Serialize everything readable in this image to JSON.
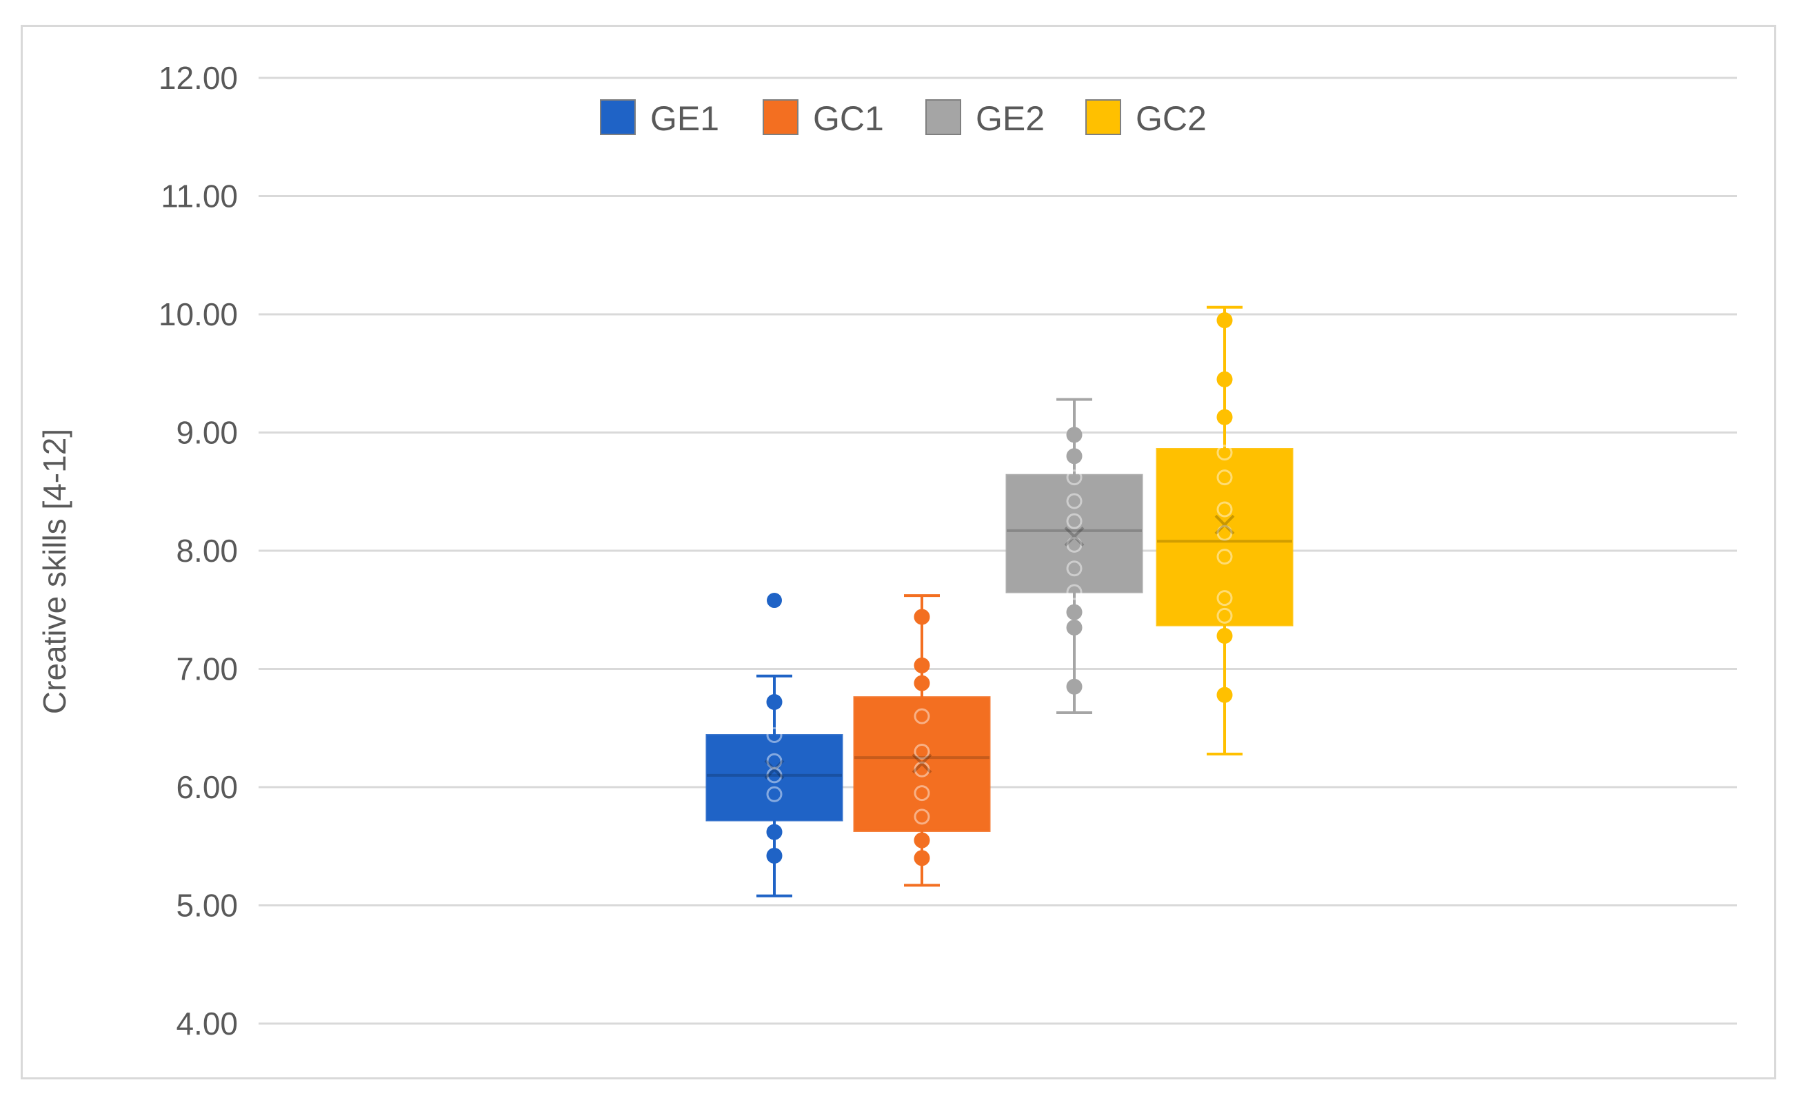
{
  "chart_data": {
    "type": "boxplot",
    "ylabel": "Creative skills [4-12]",
    "ylim": [
      4,
      12
    ],
    "yticks": [
      "4.00",
      "5.00",
      "6.00",
      "7.00",
      "8.00",
      "9.00",
      "10.00",
      "11.00",
      "12.00"
    ],
    "grid": true,
    "legend_position": "top",
    "series": [
      {
        "name": "GE1",
        "color": "#1f63c6",
        "min": 5.08,
        "q1": 5.72,
        "median": 6.1,
        "q3": 6.44,
        "max": 6.94,
        "mean": 6.15,
        "outliers": [
          7.58
        ],
        "points": [
          6.72,
          6.44,
          6.22,
          6.1,
          5.94,
          5.62,
          5.42
        ]
      },
      {
        "name": "GC1",
        "color": "#f36f21",
        "min": 5.17,
        "q1": 5.63,
        "median": 6.25,
        "q3": 6.76,
        "max": 7.62,
        "mean": 6.2,
        "outliers": [],
        "points": [
          7.44,
          7.03,
          6.88,
          6.6,
          6.3,
          6.15,
          5.95,
          5.75,
          5.55,
          5.4
        ]
      },
      {
        "name": "GE2",
        "color": "#a5a5a5",
        "min": 6.63,
        "q1": 7.65,
        "median": 8.17,
        "q3": 8.64,
        "max": 9.28,
        "mean": 8.12,
        "outliers": [],
        "points": [
          8.98,
          8.8,
          8.62,
          8.42,
          8.25,
          8.05,
          7.85,
          7.65,
          7.48,
          7.35,
          6.85
        ]
      },
      {
        "name": "GC2",
        "color": "#ffc000",
        "min": 6.28,
        "q1": 7.37,
        "median": 8.08,
        "q3": 8.86,
        "max": 10.06,
        "mean": 8.22,
        "outliers": [],
        "points": [
          9.95,
          9.45,
          9.13,
          8.83,
          8.62,
          8.35,
          8.15,
          7.95,
          7.6,
          7.45,
          7.28,
          6.78
        ]
      }
    ]
  }
}
